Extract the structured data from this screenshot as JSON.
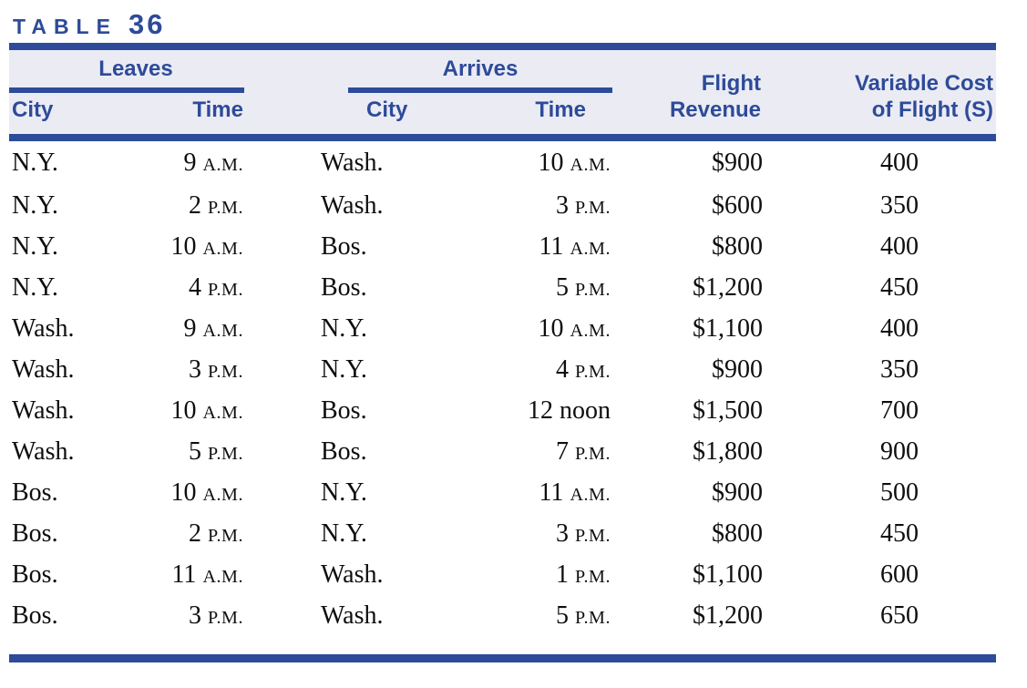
{
  "title": {
    "word": "TABLE",
    "number": "36"
  },
  "colors": {
    "accent_blue": "#2d4b99",
    "header_band_bg": "#ebebf4",
    "body_text": "#0e0e0e"
  },
  "header": {
    "leaves_label": "Leaves",
    "arrives_label": "Arrives",
    "leaves_city": "City",
    "leaves_time": "Time",
    "arrives_city": "City",
    "arrives_time": "Time",
    "revenue_line1": "Flight",
    "revenue_line2": "Revenue",
    "cost_line1": "Variable Cost",
    "cost_line2": "of Flight (S)"
  },
  "table": {
    "rows": [
      {
        "leave_city": "N.Y.",
        "leave_time_num": "9",
        "leave_time_suffix": "A.M.",
        "arrive_city": "Wash.",
        "arrive_time_num": "10",
        "arrive_time_suffix": "A.M.",
        "revenue": "$900",
        "cost": "400"
      },
      {
        "leave_city": "N.Y.",
        "leave_time_num": "2",
        "leave_time_suffix": "P.M.",
        "arrive_city": "Wash.",
        "arrive_time_num": "3",
        "arrive_time_suffix": "P.M.",
        "revenue": "$600",
        "cost": "350"
      },
      {
        "leave_city": "N.Y.",
        "leave_time_num": "10",
        "leave_time_suffix": "A.M.",
        "arrive_city": "Bos.",
        "arrive_time_num": "11",
        "arrive_time_suffix": "A.M.",
        "revenue": "$800",
        "cost": "400"
      },
      {
        "leave_city": "N.Y.",
        "leave_time_num": "4",
        "leave_time_suffix": "P.M.",
        "arrive_city": "Bos.",
        "arrive_time_num": "5",
        "arrive_time_suffix": "P.M.",
        "revenue": "$1,200",
        "cost": "450"
      },
      {
        "leave_city": "Wash.",
        "leave_time_num": "9",
        "leave_time_suffix": "A.M.",
        "arrive_city": "N.Y.",
        "arrive_time_num": "10",
        "arrive_time_suffix": "A.M.",
        "revenue": "$1,100",
        "cost": "400"
      },
      {
        "leave_city": "Wash.",
        "leave_time_num": "3",
        "leave_time_suffix": "P.M.",
        "arrive_city": "N.Y.",
        "arrive_time_num": "4",
        "arrive_time_suffix": "P.M.",
        "revenue": "$900",
        "cost": "350"
      },
      {
        "leave_city": "Wash.",
        "leave_time_num": "10",
        "leave_time_suffix": "A.M.",
        "arrive_city": "Bos.",
        "arrive_time_num": "12",
        "arrive_time_suffix": "noon",
        "revenue": "$1,500",
        "cost": "700"
      },
      {
        "leave_city": "Wash.",
        "leave_time_num": "5",
        "leave_time_suffix": "P.M.",
        "arrive_city": "Bos.",
        "arrive_time_num": "7",
        "arrive_time_suffix": "P.M.",
        "revenue": "$1,800",
        "cost": "900"
      },
      {
        "leave_city": "Bos.",
        "leave_time_num": "10",
        "leave_time_suffix": "A.M.",
        "arrive_city": "N.Y.",
        "arrive_time_num": "11",
        "arrive_time_suffix": "A.M.",
        "revenue": "$900",
        "cost": "500"
      },
      {
        "leave_city": "Bos.",
        "leave_time_num": "2",
        "leave_time_suffix": "P.M.",
        "arrive_city": "N.Y.",
        "arrive_time_num": "3",
        "arrive_time_suffix": "P.M.",
        "revenue": "$800",
        "cost": "450"
      },
      {
        "leave_city": "Bos.",
        "leave_time_num": "11",
        "leave_time_suffix": "A.M.",
        "arrive_city": "Wash.",
        "arrive_time_num": "1",
        "arrive_time_suffix": "P.M.",
        "revenue": "$1,100",
        "cost": "600"
      },
      {
        "leave_city": "Bos.",
        "leave_time_num": "3",
        "leave_time_suffix": "P.M.",
        "arrive_city": "Wash.",
        "arrive_time_num": "5",
        "arrive_time_suffix": "P.M.",
        "revenue": "$1,200",
        "cost": "650"
      }
    ]
  }
}
